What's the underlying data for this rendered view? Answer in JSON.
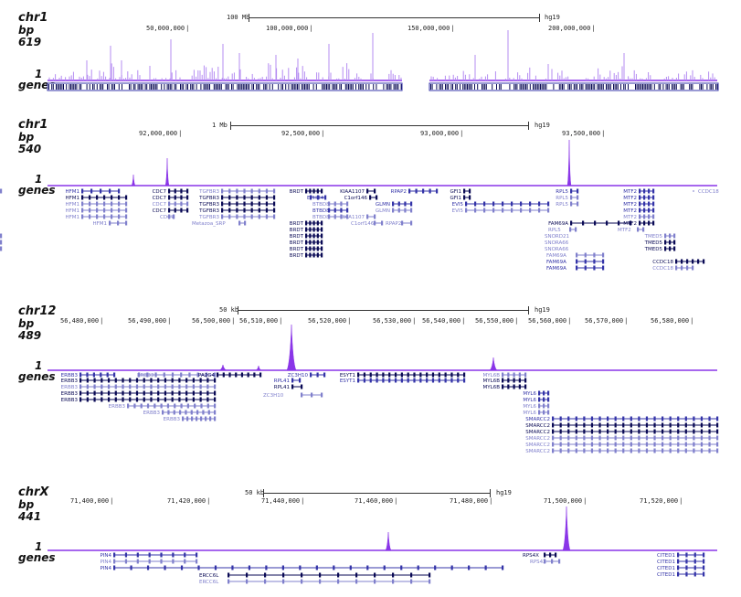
{
  "colors": {
    "signal": "#8a35e8",
    "signal_light": "#b58cf2",
    "gene_dark": "#0a0a55",
    "gene": "#3434a8",
    "gene_light": "#8080cc"
  },
  "panels": [
    {
      "chrom": "chr1",
      "bp_label": "bp",
      "max": "619",
      "one": "1",
      "genes_label": "genes",
      "scale_text": "100 Mb",
      "assembly": "hg19",
      "axis_ticks": [
        "50,000,000",
        "100,000,000",
        "150,000,000",
        "200,000,000"
      ],
      "genes": []
    },
    {
      "chrom": "chr1",
      "bp_label": "bp",
      "max": "540",
      "one": "1",
      "genes_label": "genes",
      "scale_text": "1 Mb",
      "assembly": "hg19",
      "axis_ticks": [
        "92,000,000",
        "92,500,000",
        "93,000,000",
        "93,500,000"
      ],
      "genes": [
        "HFM1",
        "HFM1",
        "HFM1",
        "HFM1",
        "HFM1",
        "HFM1",
        "CDC7",
        "CDC7",
        "CDC7",
        "CDC7",
        "CDC7",
        "TGFBR3",
        "TGFBR3",
        "TGFBR3",
        "TGFBR3",
        "TGFBR3",
        "Metazoa_SRP",
        "BRDT",
        "BRDT",
        "BRDT",
        "BRDT",
        "BRDT",
        "BRDT",
        "BRDT",
        "EPHX4",
        "BTBD8",
        "BTBD8",
        "BTBD8",
        "KIAA1107",
        "C1orf146",
        "C1orf146",
        "KIAA1107",
        "RPAP2",
        "RPAP2",
        "GLMN",
        "GLMN",
        "GFI1",
        "GFI1",
        "EVI5",
        "EVI5",
        "RPL5",
        "RPL5",
        "RPL5",
        "FAM69A",
        "RPL5",
        "SNORD21",
        "SNORA66",
        "SNORA66",
        "FAM69A",
        "FAM69A",
        "FAM69A",
        "MTF2",
        "MTF2",
        "MTF2",
        "MTF2",
        "MTF2",
        "MTF2",
        "MTF2",
        "TMED5",
        "TMED5",
        "TMED5",
        "CCDC18",
        "CCDC18",
        "CCDC18"
      ]
    },
    {
      "chrom": "chr12",
      "bp_label": "bp",
      "max": "489",
      "one": "1",
      "genes_label": "genes",
      "scale_text": "50 kb",
      "assembly": "hg19",
      "axis_ticks": [
        "56,480,000",
        "56,490,000",
        "56,500,000",
        "56,510,000",
        "56,520,000",
        "56,530,000",
        "56,540,000",
        "56,550,000",
        "56,560,000",
        "56,570,000",
        "56,580,000"
      ],
      "genes": [
        "ERBB3",
        "ERBB3",
        "ERBB3",
        "ERBB3",
        "ERBB3",
        "ERBB3",
        "ERBB3",
        "ERBB3",
        "ERBB3",
        "PA2G4",
        "RPL41",
        "RPL41",
        "ZC3H10",
        "ZC3H10",
        "ESYT1",
        "ESYT1",
        "MYL6B",
        "MYL6B",
        "MYL6B",
        "MYL6",
        "MYL6",
        "MYL6",
        "MYL6",
        "SMARCC2",
        "SMARCC2",
        "SMARCC2",
        "SMARCC2",
        "SMARCC2",
        "SMARCC2"
      ]
    },
    {
      "chrom": "chrX",
      "bp_label": "bp",
      "max": "441",
      "one": "1",
      "genes_label": "genes",
      "scale_text": "50 kb",
      "assembly": "hg19",
      "axis_ticks": [
        "71,400,000",
        "71,420,000",
        "71,440,000",
        "71,460,000",
        "71,480,000",
        "71,500,000",
        "71,520,000"
      ],
      "genes": [
        "PIN4",
        "PIN4",
        "PIN4",
        "ERCC6L",
        "ERCC6L",
        "RPS4X",
        "RPS4X",
        "CITED1",
        "CITED1",
        "CITED1",
        "CITED1"
      ]
    }
  ]
}
